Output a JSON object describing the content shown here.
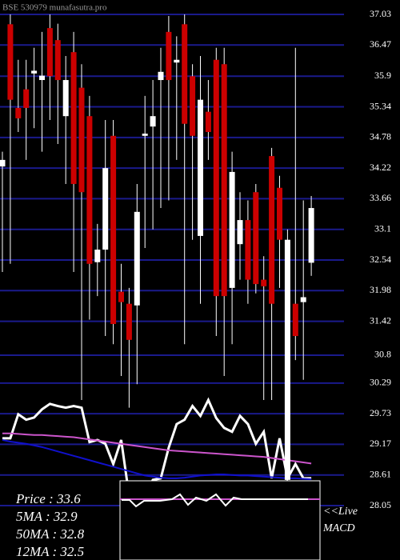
{
  "chart_data": {
    "type": "candlestick",
    "title": "BSE 530979 munafasutra.pro",
    "ylim": [
      28.05,
      37.03
    ],
    "yticks": [
      37.03,
      36.47,
      35.9,
      35.34,
      34.78,
      34.22,
      33.66,
      33.1,
      32.54,
      31.98,
      31.42,
      30.8,
      30.29,
      29.73,
      29.17,
      28.61,
      28.05
    ],
    "grid": true,
    "grid_color": "#1a1a8c",
    "up_color": "#ffffff",
    "down_color": "#cc0000",
    "open": [
      34.25,
      36.85,
      35.32,
      35.66,
      35.95,
      35.83,
      36.78,
      36.56,
      35.17,
      36.34,
      35.69,
      35.17,
      32.5,
      32.73,
      34.81,
      31.96,
      31.74,
      31.71,
      34.81,
      34.98,
      35.83,
      36.71,
      36.15,
      36.85,
      35.9,
      32.98,
      35.25,
      36.2,
      36.12,
      32.03,
      32.83,
      33.27,
      33.78,
      32.18,
      34.44,
      33.86,
      28.52,
      31.74,
      31.77,
      32.49
    ],
    "high": [
      34.52,
      37.03,
      36.2,
      36.2,
      36.42,
      36.71,
      37.03,
      36.86,
      36.27,
      36.71,
      36.12,
      35.54,
      33.2,
      35.1,
      35.1,
      32.47,
      32.03,
      33.93,
      35.54,
      35.83,
      36.42,
      37.0,
      36.63,
      37.03,
      36.12,
      36.27,
      35.83,
      36.42,
      36.42,
      34.52,
      33.78,
      33.63,
      33.93,
      32.61,
      34.59,
      34.08,
      33.1,
      36.42,
      33.63,
      33.71
    ],
    "low": [
      32.32,
      32.47,
      34.88,
      34.37,
      34.95,
      34.52,
      35.1,
      34.66,
      33.93,
      32.32,
      29.98,
      31.45,
      31.88,
      31.15,
      31.0,
      30.42,
      29.84,
      30.27,
      32.76,
      33.1,
      33.49,
      33.63,
      34.37,
      31.0,
      32.91,
      31.74,
      34.37,
      31.15,
      30.42,
      31.0,
      32.18,
      31.74,
      31.93,
      29.98,
      29.98,
      32.03,
      28.52,
      30.71,
      30.35,
      32.25
    ],
    "close": [
      34.37,
      35.47,
      35.13,
      35.32,
      36.0,
      35.91,
      35.9,
      35.83,
      35.83,
      33.93,
      33.78,
      32.47,
      32.73,
      34.22,
      31.37,
      31.77,
      31.08,
      33.42,
      34.85,
      35.17,
      35.98,
      35.83,
      36.2,
      35.03,
      34.81,
      35.47,
      34.88,
      31.88,
      31.88,
      34.15,
      33.27,
      32.18,
      32.1,
      32.06,
      31.74,
      32.91,
      32.91,
      31.15,
      31.86,
      33.49
    ],
    "series": [
      {
        "color": "#ffffff",
        "values": [
          29.28,
          29.28,
          29.72,
          29.62,
          29.66,
          29.81,
          29.91,
          29.87,
          29.84,
          29.87,
          29.84,
          29.21,
          29.25,
          29.18,
          28.81,
          29.25,
          28.23,
          28.23,
          28.23,
          28.52,
          28.55,
          29.11,
          29.54,
          29.62,
          29.87,
          29.69,
          29.98,
          29.65,
          29.47,
          29.4,
          29.69,
          29.54,
          29.18,
          29.4,
          28.55,
          29.28,
          28.55,
          28.81,
          28.55,
          28.55
        ]
      },
      {
        "color": "#1010cc",
        "values": [
          29.25,
          29.22,
          29.2,
          29.18,
          29.15,
          29.12,
          29.08,
          29.04,
          29.0,
          28.96,
          28.92,
          28.88,
          28.84,
          28.8,
          28.76,
          28.72,
          28.68,
          28.64,
          28.6,
          28.58,
          28.56,
          28.55,
          28.55,
          28.56,
          28.58,
          28.6,
          28.61,
          28.62,
          28.62,
          28.61,
          28.6,
          28.6,
          28.59,
          28.58,
          28.57,
          28.56,
          28.55,
          28.55,
          28.54,
          28.53
        ]
      },
      {
        "color": "#cc55cc",
        "values": [
          29.37,
          29.37,
          29.36,
          29.35,
          29.34,
          29.34,
          29.33,
          29.32,
          29.31,
          29.3,
          29.28,
          29.26,
          29.24,
          29.22,
          29.2,
          29.18,
          29.16,
          29.14,
          29.12,
          29.1,
          29.08,
          29.06,
          29.05,
          29.04,
          29.03,
          29.02,
          29.01,
          29.0,
          28.99,
          28.98,
          28.97,
          28.96,
          28.95,
          28.94,
          28.92,
          28.9,
          28.88,
          28.86,
          28.84,
          28.82
        ]
      }
    ],
    "legend_lines": [
      "Price   : 33.6",
      "5MA : 32.9",
      "50MA : 32.8",
      "12MA : 32.5"
    ],
    "live_label": "<<Live",
    "macd_label": "MACD"
  }
}
